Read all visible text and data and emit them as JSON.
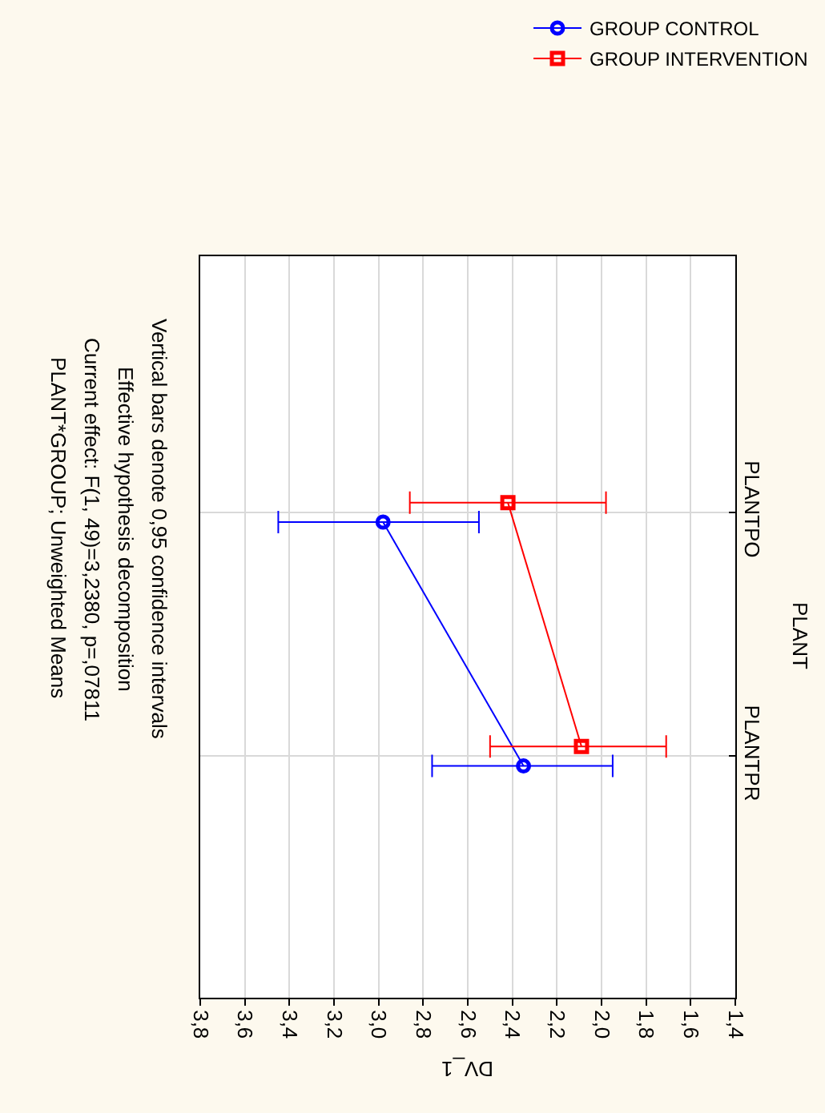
{
  "chart_data": {
    "type": "line",
    "orientation": "horizontal",
    "title": "PLANT*GROUP; Unweighted Means",
    "subtitle": "Current effect: F(1, 49)=3,2380, p=,07811",
    "annotations": [
      "Effective hypothesis decomposition",
      "Vertical bars denote 0,95 confidence intervals"
    ],
    "xlabel": "DV_1",
    "ylabel": "PLANT",
    "categories": [
      "PLANTPO",
      "PLANTPR"
    ],
    "series": [
      {
        "name": "GROUP CONTROL",
        "color": "#0000ff",
        "marker": "circle",
        "values": [
          2.98,
          2.35
        ],
        "errors": [
          [
            2.55,
            3.45
          ],
          [
            1.95,
            2.76
          ]
        ]
      },
      {
        "name": "GROUP INTERVENTION",
        "color": "#ff0000",
        "marker": "square",
        "values": [
          2.42,
          2.09
        ],
        "errors": [
          [
            1.98,
            2.86
          ],
          [
            1.71,
            2.5
          ]
        ]
      }
    ],
    "xlim": [
      3.8,
      1.4
    ],
    "xticks": [
      {
        "value": 3.8,
        "label": "3,8"
      },
      {
        "value": 3.6,
        "label": "3,6"
      },
      {
        "value": 3.4,
        "label": "3,4"
      },
      {
        "value": 3.2,
        "label": "3,2"
      },
      {
        "value": 3.0,
        "label": "3,0"
      },
      {
        "value": 2.8,
        "label": "2,8"
      },
      {
        "value": 2.6,
        "label": "2,6"
      },
      {
        "value": 2.4,
        "label": "2,4"
      },
      {
        "value": 2.2,
        "label": "2,2"
      },
      {
        "value": 2.0,
        "label": "2,0"
      },
      {
        "value": 1.8,
        "label": "1,8"
      },
      {
        "value": 1.6,
        "label": "1,6"
      },
      {
        "value": 1.4,
        "label": "1,4"
      }
    ],
    "grid": true,
    "legend": "top right",
    "line_style": "solid"
  }
}
